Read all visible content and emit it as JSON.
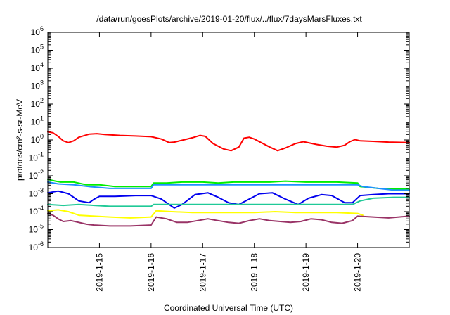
{
  "chart_data": {
    "type": "line",
    "title": "/data/run/goesPlots/archive/2019-01-20/flux/../flux/7daysMarsFluxes.txt",
    "xlabel": "Coordinated Universal Time (UTC)",
    "ylabel": "protons/cm²-s-sr-MeV",
    "y_scale": "log",
    "ylim_exponents": [
      -6,
      6
    ],
    "y_ticks": [
      {
        "base": "10",
        "exp": "-6",
        "value": -6
      },
      {
        "base": "10",
        "exp": "-5",
        "value": -5
      },
      {
        "base": "10",
        "exp": "-4",
        "value": -4
      },
      {
        "base": "10",
        "exp": "-3",
        "value": -3
      },
      {
        "base": "10",
        "exp": "-2",
        "value": -2
      },
      {
        "base": "10",
        "exp": "-1",
        "value": -1
      },
      {
        "base": "10",
        "exp": "0",
        "value": 0
      },
      {
        "base": "10",
        "exp": "1",
        "value": 1
      },
      {
        "base": "10",
        "exp": "2",
        "value": 2
      },
      {
        "base": "10",
        "exp": "3",
        "value": 3
      },
      {
        "base": "10",
        "exp": "4",
        "value": 4
      },
      {
        "base": "10",
        "exp": "5",
        "value": 5
      },
      {
        "base": "10",
        "exp": "6",
        "value": 6
      }
    ],
    "xlim_days": [
      14.0,
      21.0
    ],
    "x_ticks": [
      {
        "label": "2019-1-15",
        "day": 15
      },
      {
        "label": "2019-1-16",
        "day": 16
      },
      {
        "label": "2019-1-17",
        "day": 17
      },
      {
        "label": "2019-1-18",
        "day": 18
      },
      {
        "label": "2019-1-19",
        "day": 19
      },
      {
        "label": "2019-1-20",
        "day": 20
      }
    ],
    "grid": false,
    "legend": "none",
    "series": [
      {
        "color": "#ff0000",
        "points": [
          [
            14.0,
            0.45
          ],
          [
            14.1,
            0.4
          ],
          [
            14.2,
            0.2
          ],
          [
            14.3,
            -0.05
          ],
          [
            14.4,
            -0.15
          ],
          [
            14.5,
            -0.05
          ],
          [
            14.6,
            0.15
          ],
          [
            14.8,
            0.32
          ],
          [
            14.95,
            0.35
          ],
          [
            15.1,
            0.3
          ],
          [
            15.4,
            0.25
          ],
          [
            15.7,
            0.22
          ],
          [
            16.0,
            0.18
          ],
          [
            16.2,
            0.05
          ],
          [
            16.35,
            -0.15
          ],
          [
            16.45,
            -0.12
          ],
          [
            16.6,
            -0.02
          ],
          [
            16.8,
            0.12
          ],
          [
            16.95,
            0.25
          ],
          [
            17.05,
            0.2
          ],
          [
            17.2,
            -0.2
          ],
          [
            17.4,
            -0.5
          ],
          [
            17.55,
            -0.6
          ],
          [
            17.7,
            -0.4
          ],
          [
            17.8,
            0.1
          ],
          [
            17.9,
            0.15
          ],
          [
            18.0,
            0.05
          ],
          [
            18.3,
            -0.4
          ],
          [
            18.45,
            -0.6
          ],
          [
            18.6,
            -0.45
          ],
          [
            18.8,
            -0.2
          ],
          [
            18.95,
            -0.1
          ],
          [
            19.2,
            -0.25
          ],
          [
            19.4,
            -0.35
          ],
          [
            19.6,
            -0.4
          ],
          [
            19.75,
            -0.3
          ],
          [
            19.85,
            -0.1
          ],
          [
            19.95,
            0.02
          ],
          [
            20.05,
            -0.05
          ],
          [
            20.3,
            -0.08
          ],
          [
            20.6,
            -0.12
          ],
          [
            21.0,
            -0.15
          ]
        ]
      },
      {
        "color": "#00ee00",
        "points": [
          [
            14.0,
            -2.2
          ],
          [
            14.15,
            -2.3
          ],
          [
            14.25,
            -2.35
          ],
          [
            14.5,
            -2.35
          ],
          [
            14.75,
            -2.5
          ],
          [
            15.0,
            -2.5
          ],
          [
            15.3,
            -2.6
          ],
          [
            15.6,
            -2.6
          ],
          [
            16.0,
            -2.6
          ],
          [
            16.05,
            -2.4
          ],
          [
            16.3,
            -2.4
          ],
          [
            16.6,
            -2.35
          ],
          [
            17.0,
            -2.35
          ],
          [
            17.3,
            -2.4
          ],
          [
            17.6,
            -2.35
          ],
          [
            18.0,
            -2.35
          ],
          [
            18.3,
            -2.35
          ],
          [
            18.6,
            -2.3
          ],
          [
            19.0,
            -2.35
          ],
          [
            19.3,
            -2.35
          ],
          [
            19.6,
            -2.35
          ],
          [
            20.0,
            -2.4
          ],
          [
            20.05,
            -2.6
          ],
          [
            20.4,
            -2.7
          ],
          [
            21.0,
            -2.75
          ]
        ]
      },
      {
        "color": "#1e90ff",
        "points": [
          [
            14.0,
            -2.35
          ],
          [
            14.2,
            -2.45
          ],
          [
            14.5,
            -2.5
          ],
          [
            14.8,
            -2.6
          ],
          [
            15.2,
            -2.7
          ],
          [
            15.6,
            -2.7
          ],
          [
            16.0,
            -2.7
          ],
          [
            16.05,
            -2.5
          ],
          [
            16.4,
            -2.5
          ],
          [
            16.8,
            -2.5
          ],
          [
            17.2,
            -2.5
          ],
          [
            17.6,
            -2.5
          ],
          [
            18.0,
            -2.5
          ],
          [
            18.4,
            -2.5
          ],
          [
            18.8,
            -2.5
          ],
          [
            19.2,
            -2.5
          ],
          [
            19.6,
            -2.5
          ],
          [
            20.0,
            -2.5
          ],
          [
            20.1,
            -2.6
          ],
          [
            20.4,
            -2.7
          ],
          [
            20.7,
            -2.8
          ],
          [
            21.0,
            -2.8
          ]
        ]
      },
      {
        "color": "#0000ee",
        "points": [
          [
            14.0,
            -2.95
          ],
          [
            14.2,
            -2.85
          ],
          [
            14.4,
            -3.0
          ],
          [
            14.6,
            -3.4
          ],
          [
            14.8,
            -3.5
          ],
          [
            14.9,
            -3.3
          ],
          [
            15.0,
            -3.15
          ],
          [
            15.3,
            -3.15
          ],
          [
            15.7,
            -3.1
          ],
          [
            16.0,
            -3.1
          ],
          [
            16.2,
            -3.3
          ],
          [
            16.45,
            -3.8
          ],
          [
            16.6,
            -3.6
          ],
          [
            16.85,
            -3.05
          ],
          [
            17.1,
            -2.95
          ],
          [
            17.3,
            -3.2
          ],
          [
            17.5,
            -3.5
          ],
          [
            17.7,
            -3.6
          ],
          [
            17.9,
            -3.3
          ],
          [
            18.1,
            -3.0
          ],
          [
            18.35,
            -2.95
          ],
          [
            18.6,
            -3.3
          ],
          [
            18.85,
            -3.6
          ],
          [
            19.05,
            -3.25
          ],
          [
            19.3,
            -3.05
          ],
          [
            19.5,
            -3.1
          ],
          [
            19.75,
            -3.5
          ],
          [
            19.9,
            -3.5
          ],
          [
            20.05,
            -3.1
          ],
          [
            20.3,
            -3.05
          ],
          [
            20.6,
            -3.0
          ],
          [
            21.0,
            -3.0
          ]
        ]
      },
      {
        "color": "#20c997",
        "points": [
          [
            14.0,
            -3.6
          ],
          [
            14.3,
            -3.65
          ],
          [
            14.6,
            -3.6
          ],
          [
            14.9,
            -3.65
          ],
          [
            15.2,
            -3.7
          ],
          [
            15.6,
            -3.7
          ],
          [
            16.0,
            -3.7
          ],
          [
            16.05,
            -3.6
          ],
          [
            16.4,
            -3.6
          ],
          [
            16.8,
            -3.6
          ],
          [
            17.2,
            -3.6
          ],
          [
            17.6,
            -3.6
          ],
          [
            18.0,
            -3.6
          ],
          [
            18.4,
            -3.6
          ],
          [
            18.8,
            -3.6
          ],
          [
            19.2,
            -3.6
          ],
          [
            19.6,
            -3.6
          ],
          [
            19.9,
            -3.6
          ],
          [
            20.05,
            -3.4
          ],
          [
            20.3,
            -3.25
          ],
          [
            20.7,
            -3.2
          ],
          [
            21.0,
            -3.2
          ]
        ]
      },
      {
        "color": "#ffff00",
        "points": [
          [
            14.0,
            -3.95
          ],
          [
            14.2,
            -3.9
          ],
          [
            14.4,
            -4.0
          ],
          [
            14.6,
            -4.2
          ],
          [
            14.9,
            -4.25
          ],
          [
            15.2,
            -4.3
          ],
          [
            15.6,
            -4.35
          ],
          [
            16.0,
            -4.3
          ],
          [
            16.1,
            -3.95
          ],
          [
            16.4,
            -4.0
          ],
          [
            16.8,
            -4.05
          ],
          [
            17.2,
            -4.05
          ],
          [
            17.6,
            -4.05
          ],
          [
            18.0,
            -4.05
          ],
          [
            18.4,
            -4.0
          ],
          [
            18.8,
            -4.05
          ],
          [
            19.2,
            -4.05
          ],
          [
            19.6,
            -4.05
          ],
          [
            20.0,
            -4.1
          ],
          [
            20.1,
            -4.2
          ]
        ]
      },
      {
        "color": "#993366",
        "points": [
          [
            14.0,
            -4.1
          ],
          [
            14.1,
            -4.2
          ],
          [
            14.2,
            -4.4
          ],
          [
            14.3,
            -4.55
          ],
          [
            14.45,
            -4.5
          ],
          [
            14.6,
            -4.6
          ],
          [
            14.75,
            -4.7
          ],
          [
            14.9,
            -4.75
          ],
          [
            15.2,
            -4.8
          ],
          [
            15.6,
            -4.8
          ],
          [
            16.0,
            -4.75
          ],
          [
            16.1,
            -4.3
          ],
          [
            16.3,
            -4.4
          ],
          [
            16.5,
            -4.6
          ],
          [
            16.7,
            -4.6
          ],
          [
            16.9,
            -4.5
          ],
          [
            17.1,
            -4.4
          ],
          [
            17.3,
            -4.5
          ],
          [
            17.5,
            -4.6
          ],
          [
            17.7,
            -4.65
          ],
          [
            17.9,
            -4.5
          ],
          [
            18.1,
            -4.4
          ],
          [
            18.3,
            -4.5
          ],
          [
            18.5,
            -4.55
          ],
          [
            18.7,
            -4.6
          ],
          [
            18.9,
            -4.55
          ],
          [
            19.1,
            -4.4
          ],
          [
            19.3,
            -4.45
          ],
          [
            19.5,
            -4.6
          ],
          [
            19.7,
            -4.65
          ],
          [
            19.9,
            -4.5
          ],
          [
            20.0,
            -4.25
          ],
          [
            20.3,
            -4.3
          ],
          [
            20.6,
            -4.35
          ],
          [
            21.0,
            -4.25
          ]
        ]
      }
    ]
  }
}
